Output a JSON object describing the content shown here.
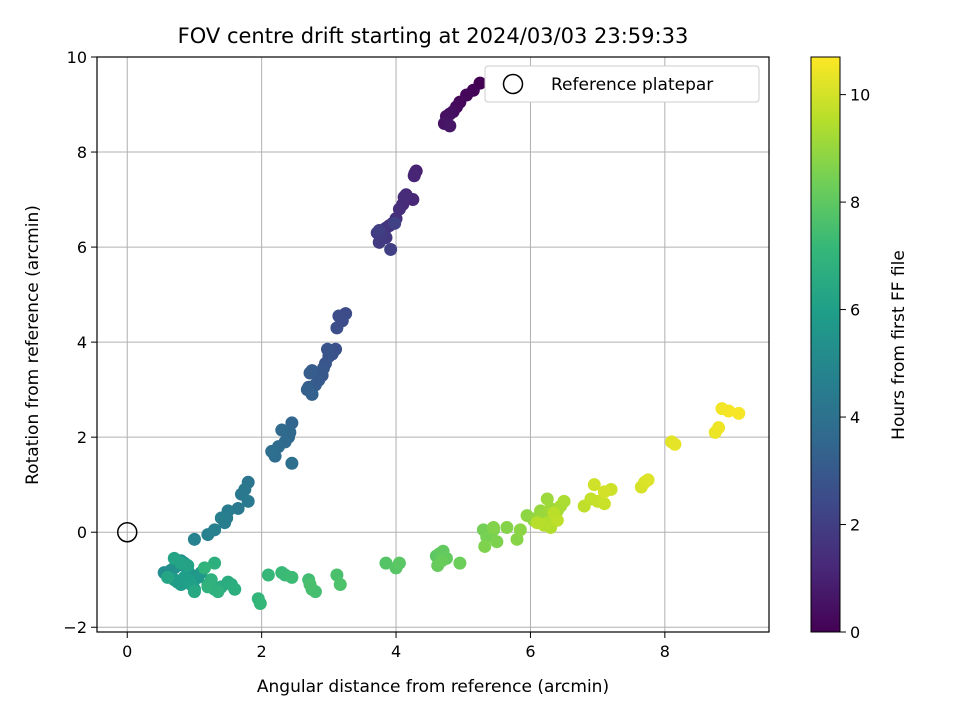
{
  "chart_data": {
    "type": "scatter",
    "title": "FOV centre drift starting at 2024/03/03 23:59:33",
    "xlabel": "Angular distance from reference (arcmin)",
    "ylabel": "Rotation from reference (arcmin)",
    "xlim": [
      -0.45,
      9.55
    ],
    "ylim": [
      -2.1,
      10.0
    ],
    "x_ticks": [
      "0",
      "2",
      "4",
      "6",
      "8"
    ],
    "y_ticks": [
      "−2",
      "0",
      "2",
      "4",
      "6",
      "8",
      "10"
    ],
    "grid": true,
    "legend": {
      "position": "top-right",
      "entries": [
        "Reference platepar"
      ]
    },
    "reference_point": {
      "x": 0,
      "y": 0
    },
    "colorbar": {
      "label": "Hours from first FF file",
      "range": [
        0,
        10.7
      ],
      "ticks": [
        "0",
        "2",
        "4",
        "6",
        "8",
        "10"
      ],
      "colormap": "viridis",
      "colors": [
        "#440154",
        "#482878",
        "#3e4989",
        "#31688e",
        "#26828e",
        "#1f9e89",
        "#35b779",
        "#6ece58",
        "#b5de2b",
        "#fde725"
      ]
    },
    "series": [
      {
        "x": [
          5.25,
          5.15,
          5.05,
          4.95,
          4.9,
          4.85,
          4.8,
          4.75,
          4.72,
          4.8,
          4.3,
          4.28,
          4.27,
          4.25,
          4.15,
          4.1,
          4.12,
          4.05,
          4.0,
          3.95,
          3.9,
          3.85,
          3.8,
          3.85,
          3.78,
          3.75,
          3.72,
          3.75,
          3.92,
          3.98,
          3.25,
          3.2,
          3.15,
          3.12,
          3.1,
          3.05,
          3.0,
          2.98,
          2.95,
          2.92,
          2.9,
          2.85,
          2.8,
          2.75,
          2.72,
          2.7,
          2.68,
          2.75,
          2.45,
          2.42,
          2.4,
          2.35,
          2.3,
          2.25,
          2.2,
          2.15,
          2.45,
          1.8,
          1.75,
          1.7,
          1.65,
          1.8,
          1.5,
          1.48,
          1.45,
          1.4,
          1.3,
          1.2,
          1.0,
          0.55,
          0.6,
          0.65,
          0.7,
          0.75,
          0.8,
          0.85,
          0.9,
          0.95,
          1.0,
          1.05,
          1.1,
          0.7,
          0.75,
          0.8,
          0.85,
          0.9,
          0.95,
          1.0,
          0.9,
          0.8,
          0.7,
          0.6,
          1.0,
          1.2,
          1.3,
          1.4,
          1.5,
          1.55,
          1.6,
          1.3,
          1.25,
          1.35,
          1.2,
          1.15,
          1.95,
          1.98,
          2.1,
          2.3,
          2.35,
          2.45,
          2.7,
          2.75,
          2.8,
          2.72,
          3.12,
          3.17,
          3.85,
          4.0,
          4.05,
          4.6,
          4.65,
          4.7,
          4.75,
          4.62,
          4.68,
          4.95,
          5.3,
          5.35,
          5.45,
          5.5,
          5.32,
          5.45,
          5.65,
          5.8,
          5.85,
          5.95,
          6.05,
          6.1,
          6.15,
          6.2,
          6.25,
          6.3,
          6.35,
          6.4,
          6.45,
          6.5,
          6.25,
          6.3,
          6.2,
          6.1,
          6.35,
          6.4,
          6.8,
          6.9,
          7.0,
          7.1,
          7.2,
          6.95,
          7.1,
          7.65,
          7.7,
          7.75,
          8.1,
          8.15,
          8.75,
          8.8,
          8.85,
          8.95,
          9.1
        ],
        "y": [
          9.45,
          9.3,
          9.2,
          9.05,
          8.95,
          8.85,
          8.8,
          8.75,
          8.6,
          8.55,
          7.6,
          7.55,
          7.5,
          7.0,
          7.1,
          6.9,
          7.05,
          6.8,
          6.6,
          6.5,
          6.45,
          6.4,
          6.3,
          6.2,
          6.25,
          6.1,
          6.3,
          6.35,
          5.95,
          6.5,
          4.6,
          4.45,
          4.55,
          4.3,
          3.85,
          3.75,
          3.7,
          3.85,
          3.55,
          3.45,
          3.3,
          3.2,
          3.1,
          3.4,
          3.35,
          3.05,
          3.0,
          2.9,
          2.3,
          2.1,
          2.0,
          1.9,
          2.15,
          1.8,
          1.6,
          1.7,
          1.45,
          1.05,
          0.9,
          0.8,
          0.5,
          0.65,
          0.45,
          0.3,
          0.2,
          0.3,
          0.05,
          -0.05,
          -0.15,
          -0.85,
          -0.9,
          -0.8,
          -0.75,
          -0.7,
          -0.6,
          -0.65,
          -0.8,
          -0.9,
          -1.0,
          -0.95,
          -0.85,
          -1.0,
          -1.05,
          -1.1,
          -0.95,
          -1.0,
          -1.1,
          -1.2,
          -0.7,
          -0.65,
          -0.55,
          -0.95,
          -1.25,
          -1.1,
          -1.2,
          -1.15,
          -1.05,
          -1.1,
          -1.2,
          -0.65,
          -1.0,
          -1.25,
          -1.15,
          -0.75,
          -1.4,
          -1.5,
          -0.9,
          -0.85,
          -0.9,
          -0.95,
          -1.0,
          -1.2,
          -1.25,
          -1.1,
          -0.9,
          -1.1,
          -0.65,
          -0.75,
          -0.65,
          -0.5,
          -0.45,
          -0.4,
          -0.55,
          -0.7,
          -0.6,
          -0.65,
          0.05,
          -0.1,
          0.05,
          -0.2,
          -0.3,
          0.1,
          0.1,
          -0.15,
          0.05,
          0.35,
          0.25,
          0.3,
          0.45,
          0.4,
          0.7,
          0.5,
          0.35,
          0.45,
          0.55,
          0.65,
          0.2,
          0.1,
          0.15,
          0.2,
          0.4,
          0.25,
          0.55,
          0.7,
          0.65,
          0.6,
          0.9,
          1.0,
          0.85,
          0.95,
          1.05,
          1.1,
          1.9,
          1.85,
          2.1,
          2.2,
          2.6,
          2.55,
          2.5
        ],
        "hours": [
          0.0,
          0.07,
          0.14,
          0.21,
          0.28,
          0.35,
          0.42,
          0.49,
          0.56,
          0.63,
          0.98,
          1.04,
          1.1,
          1.16,
          1.22,
          1.28,
          1.34,
          1.4,
          1.46,
          1.52,
          1.58,
          1.64,
          1.7,
          1.76,
          1.82,
          1.88,
          1.94,
          2.0,
          2.06,
          2.12,
          2.45,
          2.5,
          2.55,
          2.6,
          2.65,
          2.7,
          2.75,
          2.8,
          2.85,
          2.9,
          2.95,
          3.0,
          3.05,
          3.1,
          3.15,
          3.2,
          3.25,
          3.3,
          3.5,
          3.55,
          3.6,
          3.65,
          3.7,
          3.75,
          3.8,
          3.85,
          3.9,
          4.2,
          4.25,
          4.3,
          4.35,
          4.4,
          4.45,
          4.5,
          4.55,
          4.6,
          4.65,
          4.7,
          4.75,
          5.2,
          5.25,
          5.3,
          5.35,
          5.4,
          5.45,
          5.5,
          5.55,
          5.6,
          5.65,
          5.7,
          5.75,
          5.8,
          5.85,
          5.9,
          5.95,
          6.0,
          6.05,
          6.1,
          6.15,
          6.2,
          6.25,
          6.3,
          6.4,
          6.45,
          6.5,
          6.55,
          6.6,
          6.65,
          6.7,
          6.75,
          6.8,
          6.85,
          6.9,
          6.95,
          7.05,
          7.1,
          7.15,
          7.2,
          7.25,
          7.3,
          7.4,
          7.45,
          7.5,
          7.55,
          7.6,
          7.65,
          7.8,
          7.85,
          7.9,
          7.95,
          8.0,
          8.05,
          8.1,
          8.15,
          8.2,
          8.25,
          8.4,
          8.45,
          8.5,
          8.55,
          8.6,
          8.65,
          8.7,
          8.75,
          8.8,
          8.85,
          8.9,
          8.95,
          9.0,
          9.05,
          9.1,
          9.15,
          9.2,
          9.25,
          9.3,
          9.35,
          9.4,
          9.45,
          9.5,
          9.55,
          9.6,
          9.65,
          9.7,
          9.75,
          9.8,
          9.85,
          9.9,
          9.95,
          10.0,
          10.05,
          10.1,
          10.15,
          10.25,
          10.3,
          10.4,
          10.45,
          10.5,
          10.55,
          10.6
        ]
      }
    ]
  }
}
